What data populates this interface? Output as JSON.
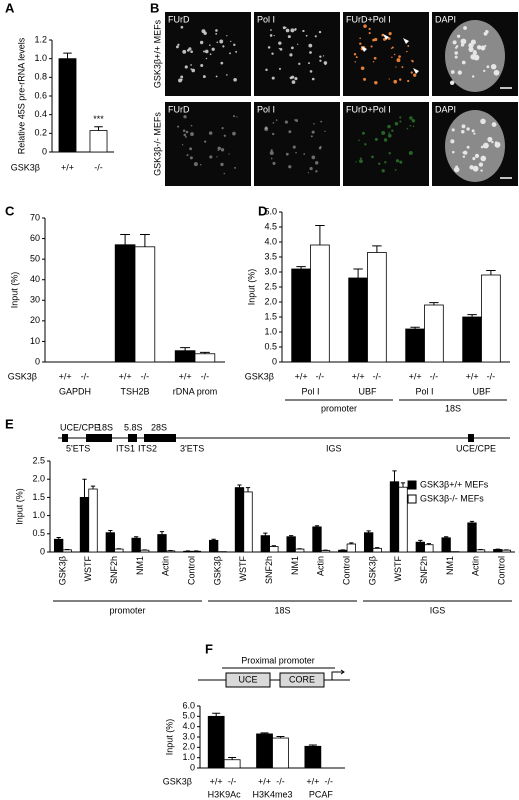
{
  "chart_data": [
    {
      "type": "bar",
      "panel": "A",
      "y_label": "Relative 45S pre-rRNA levels",
      "row_label": "GSK3β",
      "categories": [
        "+/+",
        "-/-"
      ],
      "values": [
        1,
        0.23
      ],
      "errors": [
        0.06,
        0.04
      ],
      "colors": [
        "#000000",
        "#ffffff"
      ],
      "ylim": [
        0,
        1.2
      ],
      "yticks": [
        0,
        0.2,
        0.4,
        0.6,
        0.8,
        {
          "value": 1,
          "label": "1.0"
        },
        1.2
      ],
      "significance": {
        "category": "-/-",
        "text": "***"
      }
    },
    {
      "type": "bar",
      "panel": "C",
      "y_label": "Input (%)",
      "row_label": "GSK3β",
      "categories": [
        "GAPDH",
        "TSH2B",
        "rDNA prom"
      ],
      "series": [
        {
          "name": "+/+",
          "color": "#000000",
          "values": [
            0,
            57,
            5.5
          ],
          "errors": [
            0,
            5,
            1.5
          ]
        },
        {
          "name": "-/-",
          "color": "#ffffff",
          "values": [
            0,
            56,
            4
          ],
          "errors": [
            0,
            6,
            0.7
          ]
        }
      ],
      "ylim": [
        0,
        70
      ],
      "yticks": [
        0,
        10,
        20,
        30,
        40,
        50,
        60,
        70
      ]
    },
    {
      "type": "bar",
      "panel": "D",
      "y_label": "Input (%)",
      "row_label": "GSK3β",
      "groups": [
        {
          "label": "promoter",
          "categories": [
            "Pol I",
            "UBF"
          ]
        },
        {
          "label": "18S",
          "categories": [
            "Pol I",
            "UBF"
          ]
        }
      ],
      "series": [
        {
          "name": "+/+",
          "color": "#000000",
          "values": [
            3.1,
            2.8,
            1.1,
            1.5
          ],
          "errors": [
            0.08,
            0.3,
            0.06,
            0.08
          ]
        },
        {
          "name": "-/-",
          "color": "#ffffff",
          "values": [
            3.9,
            3.65,
            1.9,
            2.9
          ],
          "errors": [
            0.65,
            0.22,
            0.08,
            0.15
          ]
        }
      ],
      "ylim": [
        0,
        5
      ],
      "yticks": [
        0,
        0.5,
        {
          "value": 1,
          "label": "1.0"
        },
        1.5,
        {
          "value": 2,
          "label": "2.0"
        },
        2.5,
        {
          "value": 3,
          "label": "3.0"
        },
        3.5,
        {
          "value": 4,
          "label": "4.0"
        },
        4.5,
        {
          "value": 5,
          "label": "5.0"
        }
      ]
    },
    {
      "type": "bar",
      "panel": "E",
      "y_label": "Input (%)",
      "legend": "upper right",
      "groups": [
        {
          "label": "promoter",
          "categories": [
            "GSK3β",
            "WSTF",
            "SNF2h",
            "NM1",
            "Actin",
            "Control"
          ]
        },
        {
          "label": "18S",
          "categories": [
            "GSK3β",
            "WSTF",
            "SNF2h",
            "NM1",
            "Actin",
            "Control"
          ]
        },
        {
          "label": "IGS",
          "categories": [
            "GSK3β",
            "WSTF",
            "SNF2h",
            "NM1",
            "Actin",
            "Control"
          ]
        }
      ],
      "series": [
        {
          "name": "GSK3β+/+ MEFs",
          "color": "#000000",
          "values": [
            0.35,
            1.5,
            0.53,
            0.38,
            0.48,
            0.02,
            0.32,
            1.77,
            0.45,
            0.42,
            0.69,
            0.05,
            0.53,
            1.93,
            0.27,
            0.39,
            0.8,
            0.07
          ],
          "errors": [
            0.05,
            0.5,
            0.06,
            0.04,
            0.08,
            0.01,
            0.03,
            0.07,
            0.07,
            0.03,
            0.03,
            0.01,
            0.05,
            0.3,
            0.05,
            0.03,
            0.04,
            0.01
          ]
        },
        {
          "name": "GSK3β-/- MEFs",
          "color": "#ffffff",
          "values": [
            0.06,
            1.73,
            0.08,
            0.05,
            0.03,
            0.02,
            0.01,
            1.65,
            0.15,
            0.08,
            0.04,
            0.22,
            0.1,
            1.78,
            0.2,
            0.01,
            0.06,
            0.05
          ],
          "errors": [
            0.01,
            0.08,
            0.01,
            0.01,
            0.01,
            0.01,
            0,
            0.12,
            0.02,
            0.01,
            0.01,
            0.03,
            0.02,
            0.12,
            0.03,
            0,
            0.01,
            0.01
          ]
        }
      ],
      "ylim": [
        0,
        2.5
      ],
      "yticks": [
        0,
        0.5,
        {
          "value": 1,
          "label": "1.0"
        },
        1.5,
        {
          "value": 2,
          "label": "2.0"
        },
        2.5
      ]
    },
    {
      "type": "bar",
      "panel": "F",
      "y_label": "Input (%)",
      "row_label": "GSK3β",
      "categories": [
        "H3K9Ac",
        "H3K4me3",
        "PCAF"
      ],
      "series": [
        {
          "name": "+/+",
          "color": "#000000",
          "values": [
            5,
            3.3,
            2.1
          ],
          "errors": [
            0.3,
            0.1,
            0.12
          ]
        },
        {
          "name": "-/-",
          "color": "#ffffff",
          "values": [
            0.8,
            2.9,
            0
          ],
          "errors": [
            0.22,
            0.15,
            0
          ]
        }
      ],
      "ylim": [
        0,
        6
      ],
      "yticks": [
        0,
        {
          "value": 1,
          "label": "1.0"
        },
        {
          "value": 2,
          "label": "2.0"
        },
        {
          "value": 3,
          "label": "3.0"
        },
        {
          "value": 4,
          "label": "4.0"
        },
        {
          "value": 5,
          "label": "5.0"
        },
        {
          "value": 6,
          "label": "6.0"
        }
      ]
    }
  ],
  "panel_b": {
    "panel": "B",
    "columns": [
      "FUrD",
      "Pol I",
      "FUrD+Pol I",
      "DAPI"
    ],
    "rows": [
      "GSK3β+/+ MEFs",
      "GSK3β-/- MEFs"
    ]
  },
  "gene_map": {
    "top_labels": [
      "UCE/CPE",
      "18S",
      "5.8S",
      "28S"
    ],
    "bottom_labels": [
      "5'ETS",
      "ITS1",
      "ITS2",
      "3'ETS",
      "IGS",
      "UCE/CPE"
    ]
  },
  "promoter_map": {
    "title": "Proximal promoter",
    "boxes": [
      "UCE",
      "CORE"
    ]
  }
}
